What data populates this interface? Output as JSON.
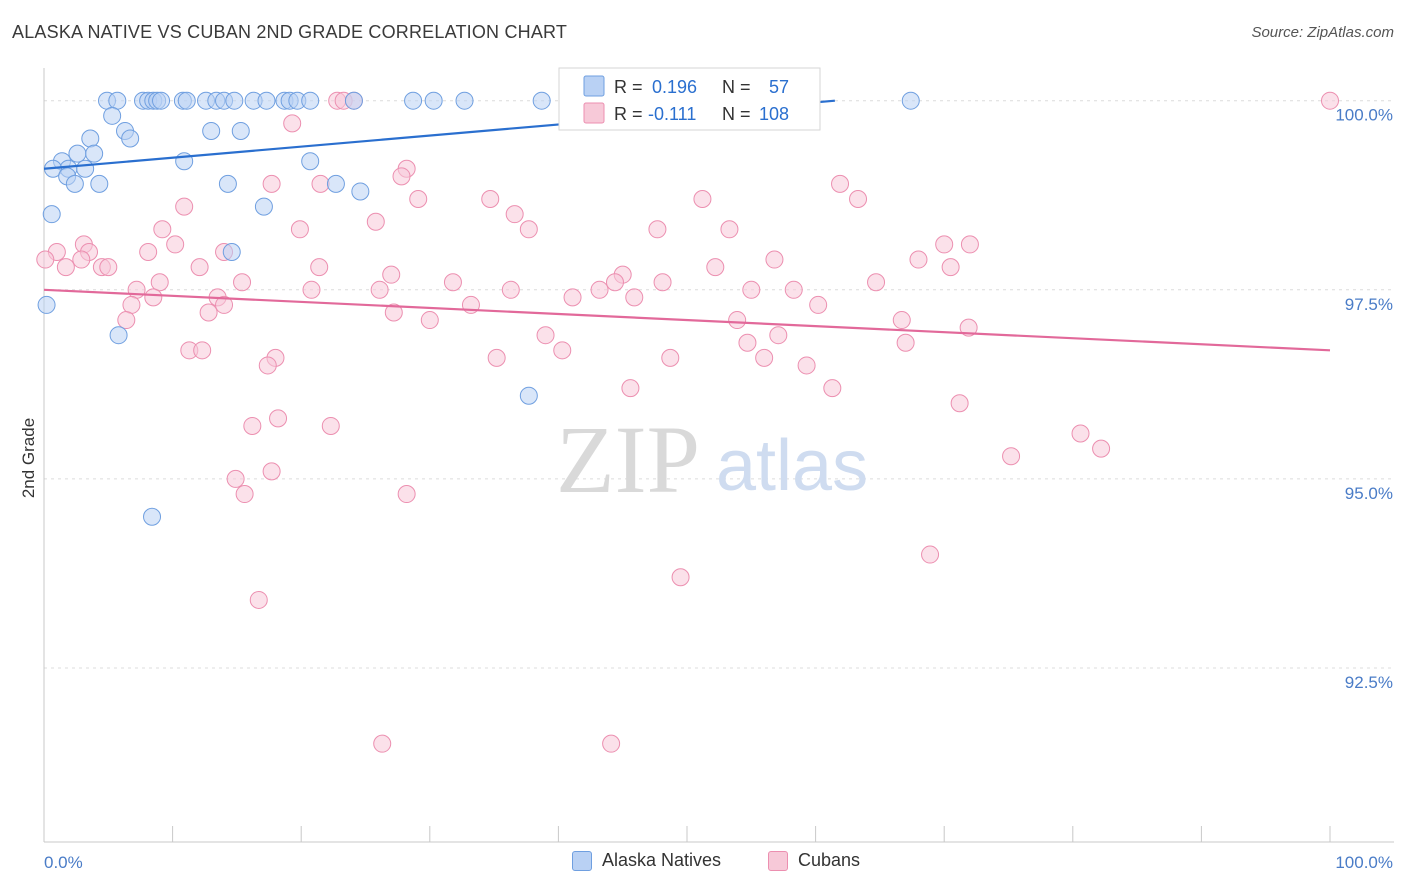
{
  "header": {
    "title": "ALASKA NATIVE VS CUBAN 2ND GRADE CORRELATION CHART",
    "source": "Source: ZipAtlas.com"
  },
  "watermark": {
    "zip": "ZIP",
    "atlas": "atlas"
  },
  "colors": {
    "blue": "#6f9fe0",
    "blue_fill": "#b9d1f4",
    "blue_line": "#2a6fcf",
    "pink": "#ec8fb0",
    "pink_fill": "#f7c9d8",
    "pink_line": "#e2699a",
    "tick_label": "#4a7cc7"
  },
  "chart_data": {
    "type": "scatter",
    "title": "ALASKA NATIVE VS CUBAN 2ND GRADE CORRELATION CHART",
    "xlabel": "",
    "ylabel": "2nd Grade",
    "xlim": [
      0,
      100
    ],
    "ylim": [
      90.2,
      100.3
    ],
    "x_tick_labels": [
      "0.0%",
      "100.0%"
    ],
    "y_ticks": [
      92.5,
      95.0,
      97.5,
      100.0
    ],
    "y_tick_labels": [
      "92.5%",
      "95.0%",
      "97.5%",
      "100.0%"
    ],
    "grid": true,
    "legend_top": {
      "rows": [
        {
          "r_label": "R =",
          "r_value": "0.196",
          "n_label": "N =",
          "n_value": "57"
        },
        {
          "r_label": "R =",
          "r_value": "-0.111",
          "n_label": "N =",
          "n_value": "108"
        }
      ]
    },
    "series": [
      {
        "name": "Alaska Natives",
        "trend": {
          "x": [
            0,
            61.5
          ],
          "y": [
            99.1,
            100.0
          ]
        },
        "points": [
          [
            4.9,
            100
          ],
          [
            5.7,
            100
          ],
          [
            7.7,
            100
          ],
          [
            8.1,
            100
          ],
          [
            8.5,
            100
          ],
          [
            8.8,
            100
          ],
          [
            9.1,
            100
          ],
          [
            10.8,
            100
          ],
          [
            11.1,
            100
          ],
          [
            12.6,
            100
          ],
          [
            13.4,
            100
          ],
          [
            14.0,
            100
          ],
          [
            14.8,
            100
          ],
          [
            16.3,
            100
          ],
          [
            17.3,
            100
          ],
          [
            18.7,
            100
          ],
          [
            19.1,
            100
          ],
          [
            19.7,
            100
          ],
          [
            20.7,
            100
          ],
          [
            24.1,
            100
          ],
          [
            28.7,
            100
          ],
          [
            30.3,
            100
          ],
          [
            32.7,
            100
          ],
          [
            38.7,
            100
          ],
          [
            42.4,
            100
          ],
          [
            44.6,
            100
          ],
          [
            44.9,
            100
          ],
          [
            45.7,
            100
          ],
          [
            67.4,
            100
          ],
          [
            5.3,
            99.8
          ],
          [
            6.3,
            99.6
          ],
          [
            6.7,
            99.5
          ],
          [
            3.6,
            99.5
          ],
          [
            13.0,
            99.6
          ],
          [
            15.3,
            99.6
          ],
          [
            2.6,
            99.3
          ],
          [
            3.9,
            99.3
          ],
          [
            1.4,
            99.2
          ],
          [
            1.9,
            99.1
          ],
          [
            3.2,
            99.1
          ],
          [
            0.7,
            99.1
          ],
          [
            1.8,
            99.0
          ],
          [
            2.4,
            98.9
          ],
          [
            4.3,
            98.9
          ],
          [
            10.9,
            99.2
          ],
          [
            20.7,
            99.2
          ],
          [
            14.3,
            98.9
          ],
          [
            22.7,
            98.9
          ],
          [
            24.6,
            98.8
          ],
          [
            0.6,
            98.5
          ],
          [
            17.1,
            98.6
          ],
          [
            14.6,
            98.0
          ],
          [
            0.2,
            97.3
          ],
          [
            5.8,
            96.9
          ],
          [
            37.7,
            96.1
          ],
          [
            8.4,
            94.5
          ]
        ]
      },
      {
        "name": "Cubans",
        "trend": {
          "x": [
            0,
            100
          ],
          "y": [
            97.5,
            96.7
          ]
        },
        "points": [
          [
            22.8,
            100
          ],
          [
            23.3,
            100
          ],
          [
            24.1,
            100
          ],
          [
            100,
            100
          ],
          [
            19.3,
            99.7
          ],
          [
            28.2,
            99.1
          ],
          [
            27.8,
            99.0
          ],
          [
            17.7,
            98.9
          ],
          [
            21.5,
            98.9
          ],
          [
            61.9,
            98.9
          ],
          [
            63.3,
            98.7
          ],
          [
            29.1,
            98.7
          ],
          [
            34.7,
            98.7
          ],
          [
            51.2,
            98.7
          ],
          [
            10.9,
            98.6
          ],
          [
            36.6,
            98.5
          ],
          [
            25.8,
            98.4
          ],
          [
            19.9,
            98.3
          ],
          [
            9.2,
            98.3
          ],
          [
            47.7,
            98.3
          ],
          [
            37.7,
            98.3
          ],
          [
            53.3,
            98.3
          ],
          [
            70.0,
            98.1
          ],
          [
            72.0,
            98.1
          ],
          [
            3.1,
            98.1
          ],
          [
            10.2,
            98.1
          ],
          [
            3.5,
            98.0
          ],
          [
            8.1,
            98.0
          ],
          [
            14.0,
            98.0
          ],
          [
            1.0,
            98.0
          ],
          [
            2.9,
            97.9
          ],
          [
            56.8,
            97.9
          ],
          [
            68.0,
            97.9
          ],
          [
            1.7,
            97.8
          ],
          [
            4.5,
            97.8
          ],
          [
            5.0,
            97.8
          ],
          [
            21.4,
            97.8
          ],
          [
            12.1,
            97.8
          ],
          [
            27.0,
            97.7
          ],
          [
            52.2,
            97.8
          ],
          [
            70.5,
            97.8
          ],
          [
            45.0,
            97.7
          ],
          [
            9.0,
            97.6
          ],
          [
            15.4,
            97.6
          ],
          [
            31.8,
            97.6
          ],
          [
            44.4,
            97.6
          ],
          [
            48.1,
            97.6
          ],
          [
            64.7,
            97.6
          ],
          [
            36.3,
            97.5
          ],
          [
            43.2,
            97.5
          ],
          [
            58.3,
            97.5
          ],
          [
            7.2,
            97.5
          ],
          [
            26.1,
            97.5
          ],
          [
            55.0,
            97.5
          ],
          [
            20.8,
            97.5
          ],
          [
            41.1,
            97.4
          ],
          [
            8.5,
            97.4
          ],
          [
            13.5,
            97.4
          ],
          [
            6.8,
            97.3
          ],
          [
            33.2,
            97.3
          ],
          [
            45.9,
            97.4
          ],
          [
            60.2,
            97.3
          ],
          [
            14.0,
            97.3
          ],
          [
            12.8,
            97.2
          ],
          [
            27.2,
            97.2
          ],
          [
            6.4,
            97.1
          ],
          [
            30.0,
            97.1
          ],
          [
            53.9,
            97.1
          ],
          [
            66.7,
            97.1
          ],
          [
            71.9,
            97.0
          ],
          [
            39.0,
            96.9
          ],
          [
            57.1,
            96.9
          ],
          [
            54.7,
            96.8
          ],
          [
            67.0,
            96.8
          ],
          [
            11.3,
            96.7
          ],
          [
            12.3,
            96.7
          ],
          [
            40.3,
            96.7
          ],
          [
            48.7,
            96.6
          ],
          [
            35.2,
            96.6
          ],
          [
            18.0,
            96.6
          ],
          [
            17.4,
            96.5
          ],
          [
            56.0,
            96.6
          ],
          [
            59.3,
            96.5
          ],
          [
            45.6,
            96.2
          ],
          [
            61.3,
            96.2
          ],
          [
            71.2,
            96.0
          ],
          [
            18.2,
            95.8
          ],
          [
            22.3,
            95.7
          ],
          [
            16.2,
            95.7
          ],
          [
            80.6,
            95.6
          ],
          [
            75.2,
            95.3
          ],
          [
            82.2,
            95.4
          ],
          [
            17.7,
            95.1
          ],
          [
            14.9,
            95.0
          ],
          [
            15.6,
            94.8
          ],
          [
            28.2,
            94.8
          ],
          [
            68.9,
            94.0
          ],
          [
            49.5,
            93.7
          ],
          [
            16.7,
            93.4
          ],
          [
            26.3,
            91.5
          ],
          [
            44.1,
            91.5
          ],
          [
            0.1,
            97.9
          ]
        ]
      }
    ]
  },
  "legend_bottom": {
    "items": [
      {
        "label": "Alaska Natives"
      },
      {
        "label": "Cubans"
      }
    ]
  }
}
